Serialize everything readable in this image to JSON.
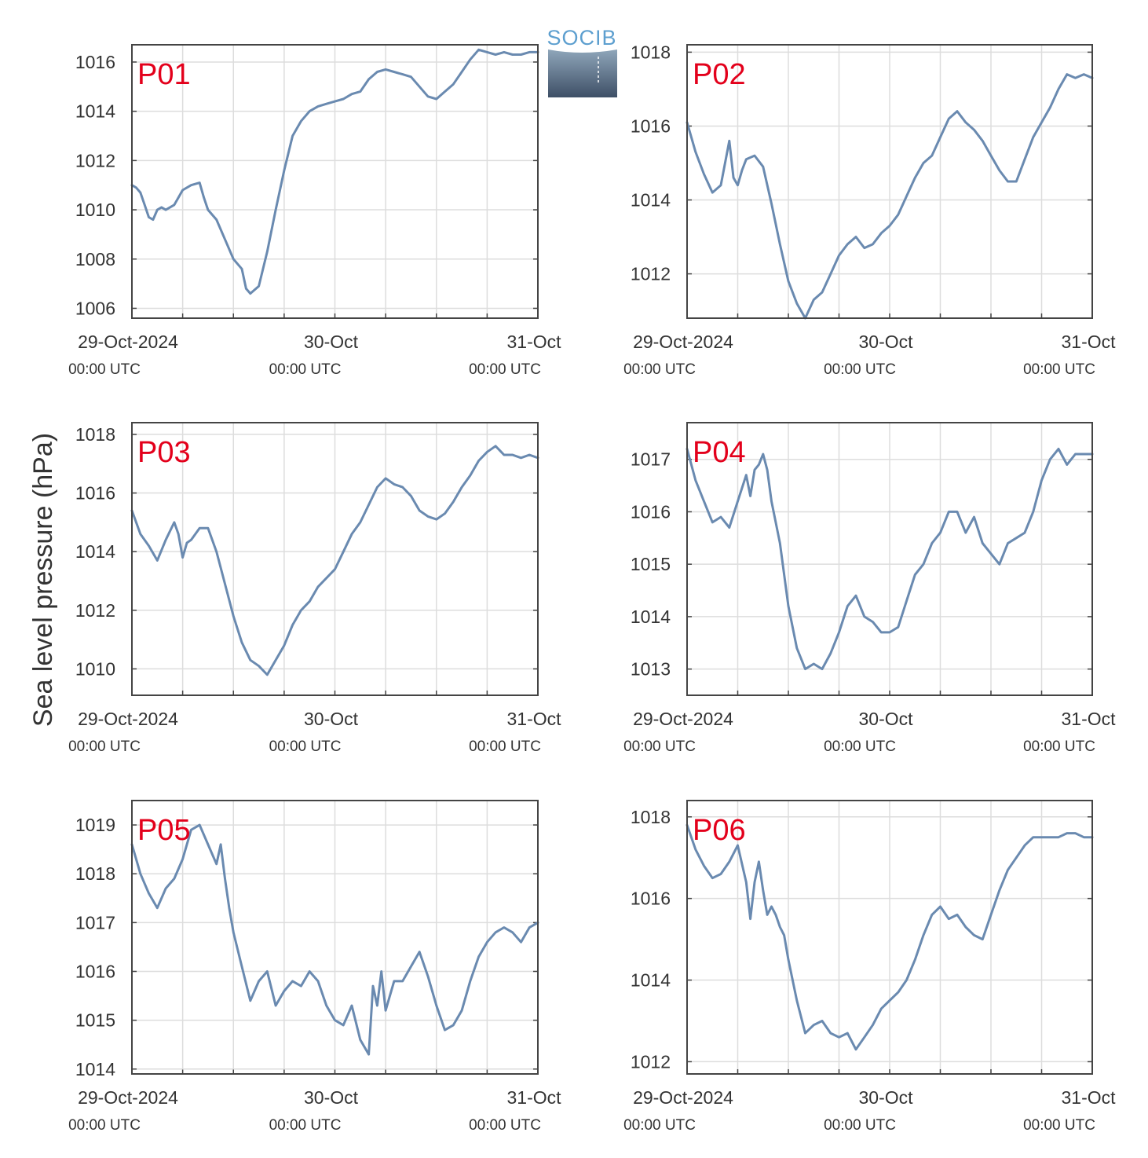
{
  "logo": {
    "text": "SOCIB"
  },
  "ylabel": "Sea level pressure (hPa)",
  "colors": {
    "line": "#6a8ab0",
    "grid": "#dddddd",
    "frame": "#444444",
    "panel_label": "#e3001b"
  },
  "x_tick_labels": [
    {
      "date": "29-Oct-2024",
      "time": "00:00 UTC"
    },
    {
      "date": "30-Oct",
      "time": "00:00 UTC"
    },
    {
      "date": "31-Oct",
      "time": "00:00 UTC"
    }
  ],
  "chart_data": [
    {
      "type": "line",
      "title": "P01",
      "xlabel": "",
      "ylabel": "Sea level pressure (hPa)",
      "xlim": [
        0,
        48
      ],
      "ylim": [
        1005.6,
        1016.7
      ],
      "yticks": [
        1006,
        1008,
        1010,
        1012,
        1014,
        1016
      ],
      "grid": true,
      "series": [
        {
          "x": [
            0,
            0.5,
            1,
            1.5,
            2,
            2.5,
            3,
            3.5,
            4,
            5,
            6,
            7,
            8,
            8.5,
            9,
            10,
            11,
            12,
            13,
            13.5,
            14,
            15,
            16,
            17,
            18,
            19,
            20,
            21,
            22,
            23,
            24,
            25,
            26,
            27,
            28,
            29,
            30,
            31,
            32,
            33,
            34,
            35,
            36,
            37,
            38,
            39,
            40,
            41,
            42,
            43,
            44,
            45,
            46,
            47,
            48
          ],
          "y": [
            1011,
            1010.9,
            1010.7,
            1010.2,
            1009.7,
            1009.6,
            1010,
            1010.1,
            1010,
            1010.2,
            1010.8,
            1011,
            1011.1,
            1010.5,
            1010,
            1009.6,
            1008.8,
            1008,
            1007.6,
            1006.8,
            1006.6,
            1006.9,
            1008.3,
            1010,
            1011.6,
            1013,
            1013.6,
            1014,
            1014.2,
            1014.3,
            1014.4,
            1014.5,
            1014.7,
            1014.8,
            1015.3,
            1015.6,
            1015.7,
            1015.6,
            1015.5,
            1015.4,
            1015,
            1014.6,
            1014.5,
            1014.8,
            1015.1,
            1015.6,
            1016.1,
            1016.5,
            1016.4,
            1016.3,
            1016.4,
            1016.3,
            1016.3,
            1016.4,
            1016.4
          ]
        }
      ]
    },
    {
      "type": "line",
      "title": "P02",
      "xlabel": "",
      "ylabel": "Sea level pressure (hPa)",
      "xlim": [
        0,
        48
      ],
      "ylim": [
        1010.8,
        1018.2
      ],
      "yticks": [
        1012,
        1014,
        1016,
        1018
      ],
      "grid": true,
      "series": [
        {
          "x": [
            0,
            1,
            2,
            3,
            4,
            5,
            5.5,
            6,
            6.5,
            7,
            8,
            9,
            10,
            11,
            12,
            13,
            14,
            15,
            16,
            17,
            18,
            19,
            20,
            21,
            22,
            23,
            24,
            25,
            26,
            27,
            28,
            29,
            30,
            31,
            32,
            33,
            34,
            35,
            36,
            37,
            38,
            39,
            40,
            41,
            42,
            43,
            44,
            45,
            46,
            47,
            48
          ],
          "y": [
            1016.1,
            1015.3,
            1014.7,
            1014.2,
            1014.4,
            1015.6,
            1014.6,
            1014.4,
            1014.8,
            1015.1,
            1015.2,
            1014.9,
            1013.9,
            1012.8,
            1011.8,
            1011.2,
            1010.8,
            1011.3,
            1011.5,
            1012,
            1012.5,
            1012.8,
            1013,
            1012.7,
            1012.8,
            1013.1,
            1013.3,
            1013.6,
            1014.1,
            1014.6,
            1015,
            1015.2,
            1015.7,
            1016.2,
            1016.4,
            1016.1,
            1015.9,
            1015.6,
            1015.2,
            1014.8,
            1014.5,
            1014.5,
            1015.1,
            1015.7,
            1016.1,
            1016.5,
            1017,
            1017.4,
            1017.3,
            1017.4,
            1017.3
          ]
        }
      ]
    },
    {
      "type": "line",
      "title": "P03",
      "xlabel": "",
      "ylabel": "Sea level pressure (hPa)",
      "xlim": [
        0,
        48
      ],
      "ylim": [
        1009.1,
        1018.4
      ],
      "yticks": [
        1010,
        1012,
        1014,
        1016,
        1018
      ],
      "grid": true,
      "series": [
        {
          "x": [
            0,
            1,
            2,
            3,
            4,
            5,
            5.5,
            6,
            6.5,
            7,
            8,
            9,
            10,
            11,
            12,
            13,
            14,
            15,
            16,
            17,
            18,
            19,
            20,
            21,
            22,
            23,
            24,
            25,
            26,
            27,
            28,
            29,
            30,
            31,
            32,
            33,
            34,
            35,
            36,
            37,
            38,
            39,
            40,
            41,
            42,
            43,
            44,
            45,
            46,
            47,
            48
          ],
          "y": [
            1015.4,
            1014.6,
            1014.2,
            1013.7,
            1014.4,
            1015,
            1014.6,
            1013.8,
            1014.3,
            1014.4,
            1014.8,
            1014.8,
            1014,
            1012.9,
            1011.8,
            1010.9,
            1010.3,
            1010.1,
            1009.8,
            1010.3,
            1010.8,
            1011.5,
            1012,
            1012.3,
            1012.8,
            1013.1,
            1013.4,
            1014,
            1014.6,
            1015,
            1015.6,
            1016.2,
            1016.5,
            1016.3,
            1016.2,
            1015.9,
            1015.4,
            1015.2,
            1015.1,
            1015.3,
            1015.7,
            1016.2,
            1016.6,
            1017.1,
            1017.4,
            1017.6,
            1017.3,
            1017.3,
            1017.2,
            1017.3,
            1017.2
          ]
        }
      ]
    },
    {
      "type": "line",
      "title": "P04",
      "xlabel": "",
      "ylabel": "Sea level pressure (hPa)",
      "xlim": [
        0,
        48
      ],
      "ylim": [
        1012.5,
        1017.7
      ],
      "yticks": [
        1013,
        1014,
        1015,
        1016,
        1017
      ],
      "grid": true,
      "series": [
        {
          "x": [
            0,
            1,
            2,
            3,
            4,
            5,
            6,
            7,
            7.5,
            8,
            8.5,
            9,
            9.5,
            10,
            11,
            12,
            13,
            14,
            15,
            16,
            17,
            18,
            19,
            20,
            21,
            22,
            23,
            24,
            25,
            26,
            27,
            28,
            29,
            30,
            31,
            32,
            33,
            34,
            35,
            36,
            37,
            38,
            39,
            40,
            41,
            42,
            43,
            44,
            45,
            46,
            47,
            48
          ],
          "y": [
            1017.2,
            1016.6,
            1016.2,
            1015.8,
            1015.9,
            1015.7,
            1016.2,
            1016.7,
            1016.3,
            1016.8,
            1016.9,
            1017.1,
            1016.8,
            1016.2,
            1015.4,
            1014.2,
            1013.4,
            1013,
            1013.1,
            1013,
            1013.3,
            1013.7,
            1014.2,
            1014.4,
            1014,
            1013.9,
            1013.7,
            1013.7,
            1013.8,
            1014.3,
            1014.8,
            1015,
            1015.4,
            1015.6,
            1016,
            1016,
            1015.6,
            1015.9,
            1015.4,
            1015.2,
            1015,
            1015.4,
            1015.5,
            1015.6,
            1016,
            1016.6,
            1017,
            1017.2,
            1016.9,
            1017.1,
            1017.1,
            1017.1
          ]
        }
      ]
    },
    {
      "type": "line",
      "title": "P05",
      "xlabel": "",
      "ylabel": "Sea level pressure (hPa)",
      "xlim": [
        0,
        48
      ],
      "ylim": [
        1013.9,
        1019.5
      ],
      "yticks": [
        1014,
        1015,
        1016,
        1017,
        1018,
        1019
      ],
      "grid": true,
      "series": [
        {
          "x": [
            0,
            1,
            2,
            3,
            4,
            5,
            6,
            7,
            8,
            9,
            10,
            10.5,
            11,
            11.5,
            12,
            13,
            14,
            15,
            16,
            17,
            18,
            19,
            20,
            21,
            22,
            23,
            24,
            25,
            26,
            27,
            28,
            28.5,
            29,
            29.5,
            30,
            31,
            32,
            33,
            34,
            35,
            36,
            37,
            38,
            39,
            40,
            41,
            42,
            43,
            44,
            45,
            46,
            47,
            48
          ],
          "y": [
            1018.6,
            1018,
            1017.6,
            1017.3,
            1017.7,
            1017.9,
            1018.3,
            1018.9,
            1019,
            1018.6,
            1018.2,
            1018.6,
            1017.9,
            1017.3,
            1016.8,
            1016.1,
            1015.4,
            1015.8,
            1016,
            1015.3,
            1015.6,
            1015.8,
            1015.7,
            1016,
            1015.8,
            1015.3,
            1015,
            1014.9,
            1015.3,
            1014.6,
            1014.3,
            1015.7,
            1015.3,
            1016,
            1015.2,
            1015.8,
            1015.8,
            1016.1,
            1016.4,
            1015.9,
            1015.3,
            1014.8,
            1014.9,
            1015.2,
            1015.8,
            1016.3,
            1016.6,
            1016.8,
            1016.9,
            1016.8,
            1016.6,
            1016.9,
            1017
          ]
        }
      ]
    },
    {
      "type": "line",
      "title": "P06",
      "xlabel": "",
      "ylabel": "Sea level pressure (hPa)",
      "xlim": [
        0,
        48
      ],
      "ylim": [
        1011.7,
        1018.4
      ],
      "yticks": [
        1012,
        1014,
        1016,
        1018
      ],
      "grid": true,
      "series": [
        {
          "x": [
            0,
            1,
            2,
            3,
            4,
            5,
            6,
            7,
            7.5,
            8,
            8.5,
            9,
            9.5,
            10,
            10.5,
            11,
            11.5,
            12,
            13,
            14,
            15,
            16,
            17,
            18,
            19,
            20,
            21,
            22,
            23,
            24,
            25,
            26,
            27,
            28,
            29,
            30,
            31,
            32,
            33,
            34,
            35,
            36,
            37,
            38,
            39,
            40,
            41,
            42,
            43,
            44,
            45,
            46,
            47,
            48
          ],
          "y": [
            1017.8,
            1017.2,
            1016.8,
            1016.5,
            1016.6,
            1016.9,
            1017.3,
            1016.4,
            1015.5,
            1016.4,
            1016.9,
            1016.2,
            1015.6,
            1015.8,
            1015.6,
            1015.3,
            1015.1,
            1014.5,
            1013.5,
            1012.7,
            1012.9,
            1013,
            1012.7,
            1012.6,
            1012.7,
            1012.3,
            1012.6,
            1012.9,
            1013.3,
            1013.5,
            1013.7,
            1014,
            1014.5,
            1015.1,
            1015.6,
            1015.8,
            1015.5,
            1015.6,
            1015.3,
            1015.1,
            1015,
            1015.6,
            1016.2,
            1016.7,
            1017,
            1017.3,
            1017.5,
            1017.5,
            1017.5,
            1017.5,
            1017.6,
            1017.6,
            1017.5,
            1017.5
          ]
        }
      ]
    }
  ]
}
